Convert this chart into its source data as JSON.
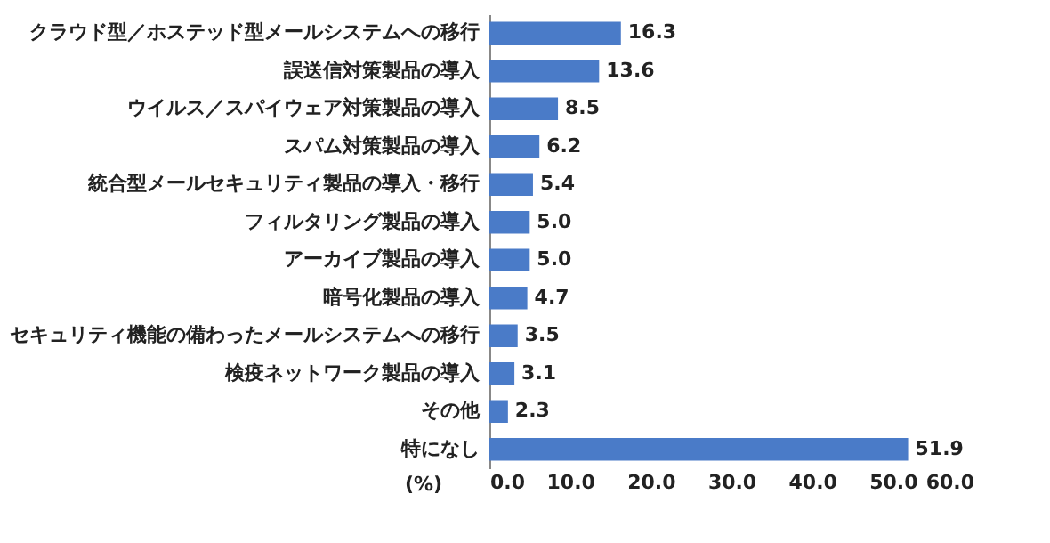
{
  "chart_data": {
    "type": "bar",
    "orientation": "horizontal",
    "categories": [
      "クラウド型／ホステッド型メールシステムへの移行",
      "誤送信対策製品の導入",
      "ウイルス／スパイウェア対策製品の導入",
      "スパム対策製品の導入",
      "統合型メールセキュリティ製品の導入・移行",
      "フィルタリング製品の導入",
      "アーカイブ製品の導入",
      "暗号化製品の導入",
      "セキュリティ機能の備わったメールシステムへの移行",
      "検疫ネットワーク製品の導入",
      "その他",
      "特になし"
    ],
    "values": [
      16.3,
      13.6,
      8.5,
      6.2,
      5.4,
      5.0,
      5.0,
      4.7,
      3.5,
      3.1,
      2.3,
      51.9
    ],
    "color": "#4a7bc8",
    "xlabel": "(%)",
    "xlim": [
      0,
      60
    ],
    "xticks": [
      {
        "value": 0,
        "label": "0.0"
      },
      {
        "value": 10,
        "label": "10.0"
      },
      {
        "value": 20,
        "label": "20.0"
      },
      {
        "value": 30,
        "label": "30.0"
      },
      {
        "value": 40,
        "label": "40.0"
      },
      {
        "value": 50,
        "label": "50.0"
      },
      {
        "value": 60,
        "label": "60.0"
      }
    ],
    "value_labels": [
      "16.3",
      "13.6",
      "8.5",
      "6.2",
      "5.4",
      "5.0",
      "5.0",
      "4.7",
      "3.5",
      "3.1",
      "2.3",
      "51.9"
    ],
    "grid": false
  }
}
